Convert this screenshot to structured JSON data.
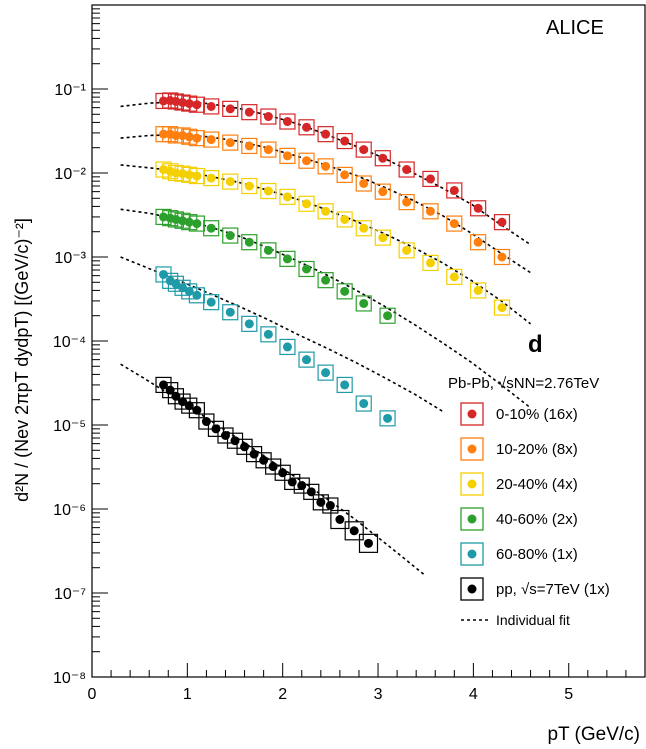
{
  "chart_data": {
    "type": "scatter",
    "yscale": "log",
    "xlim": [
      0,
      5.8
    ],
    "ylim": [
      1e-08,
      1
    ],
    "x_ticks": [
      "0",
      "1",
      "2",
      "3",
      "4",
      "5"
    ],
    "y_ticks": [
      "10⁻⁸",
      "10⁻⁷",
      "10⁻⁶",
      "10⁻⁵",
      "10⁻⁴",
      "10⁻³",
      "10⁻²",
      "10⁻¹"
    ],
    "xlabel": "pT (GeV/c)",
    "ylabel": "d²N / (Nev 2πpT dydpT) [(GeV/c)⁻²]",
    "experiment": "ALICE",
    "panel": "d",
    "legend_title": "Pb-Pb, √sNN=2.76TeV",
    "legend_position": "lower-right",
    "fit_label": "Individual fit",
    "series": [
      {
        "name": "0-10%   (16x)",
        "color": "#d62728",
        "x": [
          0.75,
          0.82,
          0.88,
          0.95,
          1.02,
          1.1,
          1.25,
          1.45,
          1.65,
          1.85,
          2.05,
          2.25,
          2.45,
          2.65,
          2.85,
          3.05,
          3.3,
          3.55,
          3.8,
          4.05,
          4.3
        ],
        "y": [
          0.072,
          0.073,
          0.071,
          0.069,
          0.067,
          0.065,
          0.062,
          0.058,
          0.053,
          0.047,
          0.041,
          0.035,
          0.029,
          0.024,
          0.019,
          0.015,
          0.011,
          0.0085,
          0.0062,
          0.0038,
          0.0026
        ],
        "fit": {
          "x0": 0.3,
          "x1": 4.6,
          "y": [
            0.062,
            0.068,
            0.0705,
            0.067,
            0.059,
            0.049,
            0.039,
            0.029,
            0.021,
            0.015,
            0.01,
            0.0066,
            0.0042,
            0.0024,
            0.0014
          ]
        }
      },
      {
        "name": "10-20%   (8x)",
        "color": "#ff7f0e",
        "x": [
          0.75,
          0.82,
          0.88,
          0.95,
          1.02,
          1.1,
          1.25,
          1.45,
          1.65,
          1.85,
          2.05,
          2.25,
          2.45,
          2.65,
          2.85,
          3.05,
          3.3,
          3.55,
          3.8,
          4.05,
          4.3
        ],
        "y": [
          0.029,
          0.029,
          0.028,
          0.028,
          0.027,
          0.026,
          0.025,
          0.023,
          0.021,
          0.019,
          0.016,
          0.014,
          0.012,
          0.0095,
          0.0075,
          0.006,
          0.0045,
          0.0035,
          0.0025,
          0.0015,
          0.001
        ],
        "fit": {
          "x0": 0.3,
          "x1": 4.6,
          "y": [
            0.026,
            0.028,
            0.0285,
            0.027,
            0.024,
            0.02,
            0.016,
            0.0125,
            0.0095,
            0.0068,
            0.0047,
            0.0031,
            0.0019,
            0.0011,
            0.00065
          ]
        }
      },
      {
        "name": "20-40%   (4x)",
        "color": "#f5d000",
        "x": [
          0.75,
          0.82,
          0.88,
          0.95,
          1.02,
          1.1,
          1.25,
          1.45,
          1.65,
          1.85,
          2.05,
          2.25,
          2.45,
          2.65,
          2.85,
          3.05,
          3.3,
          3.55,
          3.8,
          4.05,
          4.3
        ],
        "y": [
          0.011,
          0.0105,
          0.01,
          0.0098,
          0.0095,
          0.0092,
          0.0087,
          0.0079,
          0.007,
          0.0061,
          0.0052,
          0.0043,
          0.0035,
          0.0028,
          0.0022,
          0.0017,
          0.0012,
          0.00085,
          0.00058,
          0.0004,
          0.00025
        ],
        "fit": {
          "x0": 0.3,
          "x1": 4.6,
          "y": [
            0.0125,
            0.0115,
            0.0105,
            0.0092,
            0.0078,
            0.0063,
            0.0049,
            0.0037,
            0.0027,
            0.0019,
            0.0013,
            0.00085,
            0.00052,
            0.0003,
            0.00016
          ]
        }
      },
      {
        "name": "40-60%   (2x)",
        "color": "#2ca02c",
        "x": [
          0.75,
          0.82,
          0.88,
          0.95,
          1.02,
          1.1,
          1.25,
          1.45,
          1.65,
          1.85,
          2.05,
          2.25,
          2.45,
          2.65,
          2.85,
          3.1
        ],
        "y": [
          0.003,
          0.0029,
          0.0028,
          0.0027,
          0.0026,
          0.0025,
          0.0022,
          0.0018,
          0.0015,
          0.0012,
          0.00095,
          0.00072,
          0.00053,
          0.00039,
          0.00028,
          0.0002
        ],
        "fit": {
          "x0": 0.3,
          "x1": 4.6,
          "y": [
            0.0037,
            0.0033,
            0.0028,
            0.0023,
            0.0018,
            0.0013,
            0.00091,
            0.00062,
            0.00041,
            0.00026,
            0.00016,
            9.5e-05,
            5.5e-05,
            3e-05,
            1.6e-05
          ]
        }
      },
      {
        "name": "60-80%   (1x)",
        "color": "#1f9aa8",
        "x": [
          0.75,
          0.82,
          0.88,
          0.95,
          1.02,
          1.1,
          1.25,
          1.45,
          1.65,
          1.85,
          2.05,
          2.25,
          2.45,
          2.65,
          2.85,
          3.1
        ],
        "y": [
          0.00062,
          0.00052,
          0.00048,
          0.00043,
          0.00039,
          0.00035,
          0.00029,
          0.00022,
          0.00016,
          0.00012,
          8.5e-05,
          6e-05,
          4.2e-05,
          3e-05,
          1.8e-05,
          1.2e-05
        ],
        "fit": {
          "x0": 0.3,
          "x1": 3.7,
          "y": [
            0.001,
            0.00072,
            0.00052,
            0.00037,
            0.00026,
            0.00018,
            0.00012,
            8.2e-05,
            5.5e-05,
            3.6e-05,
            2.3e-05,
            1.4e-05
          ]
        }
      },
      {
        "name": "pp, √s=7TeV (1x)",
        "color": "#000000",
        "x": [
          0.75,
          0.82,
          0.88,
          0.95,
          1.02,
          1.1,
          1.2,
          1.3,
          1.4,
          1.5,
          1.6,
          1.7,
          1.8,
          1.9,
          2.0,
          2.1,
          2.2,
          2.3,
          2.4,
          2.5,
          2.6,
          2.75,
          2.9
        ],
        "y": [
          3e-05,
          2.6e-05,
          2.2e-05,
          1.9e-05,
          1.7e-05,
          1.5e-05,
          1.1e-05,
          9e-06,
          7.5e-06,
          6.5e-06,
          5.5e-06,
          4.5e-06,
          3.8e-06,
          3.2e-06,
          2.7e-06,
          2.1e-06,
          1.9e-06,
          1.6e-06,
          1.2e-06,
          1.1e-06,
          7.5e-07,
          5.5e-07,
          3.9e-07
        ],
        "fit": {
          "x0": 0.3,
          "x1": 3.5,
          "y": [
            5.3e-05,
            3.6e-05,
            2.4e-05,
            1.6e-05,
            1.05e-05,
            6.9e-06,
            4.5e-06,
            2.9e-06,
            1.9e-06,
            1.2e-06,
            7.5e-07,
            4.5e-07,
            2.7e-07,
            1.6e-07
          ]
        }
      }
    ]
  }
}
